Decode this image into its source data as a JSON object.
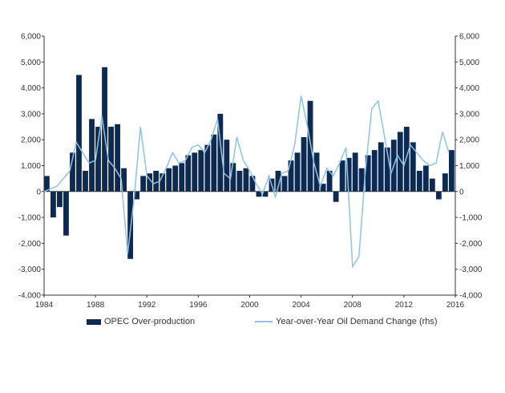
{
  "chart_data": {
    "type": "bar+line",
    "title": "",
    "xlabel": "",
    "ylabel": "",
    "x_ticks": [
      "1984",
      "1988",
      "1992",
      "1996",
      "2000",
      "2004",
      "2008",
      "2012",
      "2016"
    ],
    "xlim": [
      1984,
      2016
    ],
    "left_axis": {
      "ylim": [
        -4000,
        6000
      ],
      "ticks": [
        "6,000",
        "5,000",
        "4,000",
        "3,000",
        "2,000",
        "1,000",
        "0",
        "-1,000",
        "-2,000",
        "-3,000",
        "-4,000"
      ]
    },
    "right_axis": {
      "ylim": [
        -4000,
        6000
      ],
      "ticks": [
        "6,000",
        "5,000",
        "4,000",
        "3,000",
        "2,000",
        "1,000",
        "0",
        "-1,000",
        "-2,000",
        "-3,000",
        "-4,000"
      ]
    },
    "grid": false,
    "legend_position": "bottom",
    "series": [
      {
        "name": "OPEC Over-production",
        "kind": "bar",
        "axis": "left",
        "color": "#0d2a52",
        "x": [
          1984.0,
          1984.5,
          1985.0,
          1985.5,
          1986.0,
          1986.5,
          1987.0,
          1987.5,
          1988.0,
          1988.5,
          1989.0,
          1989.5,
          1990.0,
          1990.5,
          1991.0,
          1991.5,
          1992.0,
          1992.5,
          1993.0,
          1993.5,
          1994.0,
          1994.5,
          1995.0,
          1995.5,
          1996.0,
          1996.5,
          1997.0,
          1997.5,
          1998.0,
          1998.5,
          1999.0,
          1999.5,
          2000.0,
          2000.5,
          2001.0,
          2001.5,
          2002.0,
          2002.5,
          2003.0,
          2003.5,
          2004.0,
          2004.5,
          2005.0,
          2005.5,
          2006.0,
          2006.5,
          2007.0,
          2007.5,
          2008.0,
          2008.5,
          2009.0,
          2009.5,
          2010.0,
          2010.5,
          2011.0,
          2011.5,
          2012.0,
          2012.5,
          2013.0,
          2013.5,
          2014.0,
          2014.5,
          2015.0,
          2015.5
        ],
        "values": [
          600,
          -1000,
          -600,
          -1700,
          1500,
          4500,
          800,
          2800,
          2500,
          4800,
          2500,
          2600,
          900,
          -2600,
          -300,
          600,
          700,
          800,
          700,
          900,
          1000,
          1100,
          1400,
          1500,
          1600,
          1800,
          2200,
          3000,
          2000,
          1100,
          800,
          900,
          600,
          -200,
          -200,
          500,
          800,
          600,
          1200,
          1500,
          2100,
          3500,
          1500,
          300,
          800,
          -400,
          1200,
          1300,
          1500,
          900,
          1400,
          1600,
          1900,
          1700,
          2000,
          2300,
          2500,
          1900,
          800,
          1000,
          500,
          -300,
          700,
          1600
        ]
      },
      {
        "name": "Year-over-Year Oil Demand Change (rhs)",
        "kind": "line",
        "axis": "right",
        "color": "#8ec3e6",
        "x": [
          1984.0,
          1985.0,
          1986.0,
          1986.5,
          1987.0,
          1987.5,
          1988.0,
          1988.5,
          1989.0,
          1989.5,
          1990.0,
          1990.5,
          1991.0,
          1991.5,
          1992.0,
          1992.5,
          1993.0,
          1993.5,
          1994.0,
          1994.5,
          1995.0,
          1995.5,
          1996.0,
          1996.5,
          1997.0,
          1997.5,
          1998.0,
          1998.5,
          1999.0,
          1999.5,
          2000.0,
          2000.5,
          2001.0,
          2001.5,
          2002.0,
          2002.5,
          2003.0,
          2003.5,
          2004.0,
          2004.5,
          2005.0,
          2005.5,
          2006.0,
          2006.5,
          2007.0,
          2007.5,
          2008.0,
          2008.5,
          2009.0,
          2009.5,
          2010.0,
          2010.5,
          2011.0,
          2011.5,
          2012.0,
          2012.5,
          2013.0,
          2013.5,
          2014.0,
          2014.5,
          2015.0,
          2015.5
        ],
        "values": [
          0,
          200,
          800,
          1900,
          1500,
          1100,
          1200,
          2900,
          1200,
          900,
          500,
          -2400,
          -300,
          2500,
          600,
          300,
          400,
          900,
          1500,
          1100,
          1200,
          1700,
          1800,
          1500,
          2000,
          2800,
          700,
          500,
          2100,
          1200,
          800,
          300,
          -100,
          600,
          -200,
          700,
          800,
          1800,
          3700,
          2500,
          1100,
          200,
          900,
          600,
          1100,
          1700,
          -2900,
          -2500,
          800,
          3200,
          3500,
          2100,
          700,
          1400,
          1000,
          1800,
          1500,
          1200,
          1000,
          1100,
          2300,
          1500
        ]
      }
    ]
  }
}
